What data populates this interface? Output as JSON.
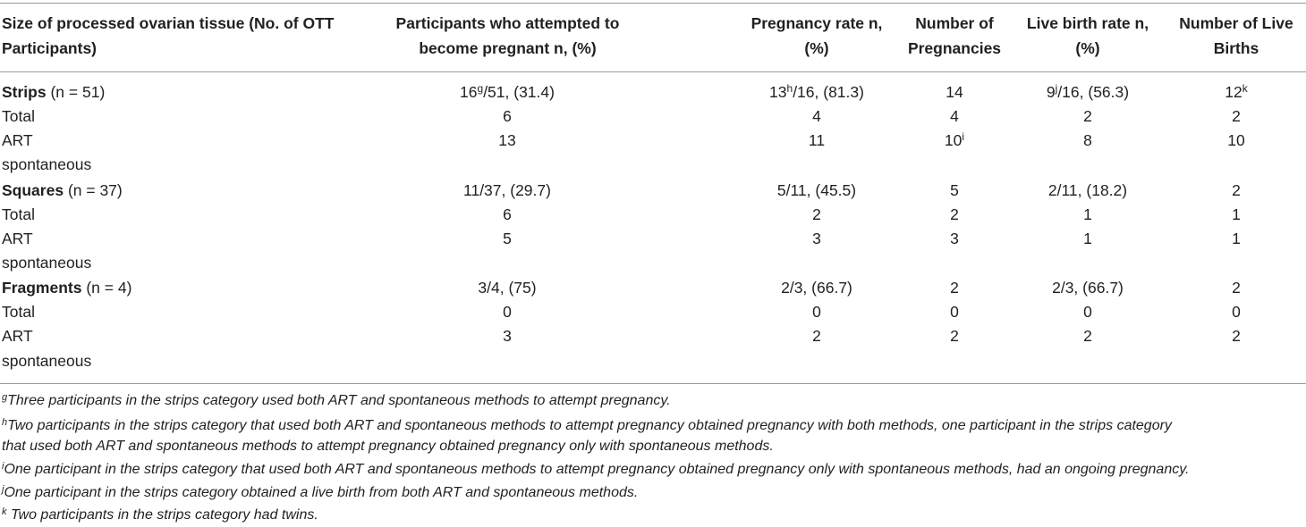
{
  "headers": [
    "Size of processed ovarian tissue (No. of OTT Participants)",
    "Participants who attempted to become pregnant n, (%)",
    "Pregnancy rate n, (%)",
    "Number of Pregnancies",
    "Live birth rate n, (%)",
    "Number of Live Births"
  ],
  "groups": [
    {
      "name": "Strips",
      "n": "(n = 51)",
      "attempted": {
        "value": "16",
        "sup": "g",
        "rest": "/51, (31.4)"
      },
      "preg_rate": {
        "value": "13",
        "sup": "h",
        "rest": "/16, (81.3)"
      },
      "num_preg": "14",
      "live_rate": {
        "value": "9",
        "sup": "j",
        "rest": "/16, (56.3)"
      },
      "num_live": {
        "value": "12",
        "sup": "k"
      },
      "rows": [
        {
          "label": "Total",
          "attempted": "6",
          "preg_rate": "4",
          "num_preg": "4",
          "live_rate": "2",
          "num_live": "2"
        },
        {
          "label": "ART",
          "attempted": "13",
          "preg_rate": "11",
          "num_preg": "10",
          "num_preg_sup": "i",
          "live_rate": "8",
          "num_live": "10"
        },
        {
          "label": "spontaneous"
        }
      ]
    },
    {
      "name": "Squares",
      "n": "(n = 37)",
      "attempted": "11/37, (29.7)",
      "preg_rate": "5/11, (45.5)",
      "num_preg": "5",
      "live_rate": "2/11, (18.2)",
      "num_live": "2",
      "rows": [
        {
          "label": "Total",
          "attempted": "6",
          "preg_rate": "2",
          "num_preg": "2",
          "live_rate": "1",
          "num_live": "1"
        },
        {
          "label": "ART",
          "attempted": "5",
          "preg_rate": "3",
          "num_preg": "3",
          "live_rate": "1",
          "num_live": "1"
        },
        {
          "label": "spontaneous"
        }
      ]
    },
    {
      "name": "Fragments",
      "n": "(n = 4)",
      "attempted": "3/4, (75)",
      "preg_rate": "2/3, (66.7)",
      "num_preg": "2",
      "live_rate": "2/3, (66.7)",
      "num_live": "2",
      "rows": [
        {
          "label": "Total",
          "attempted": "0",
          "preg_rate": "0",
          "num_preg": "0",
          "live_rate": "0",
          "num_live": "0"
        },
        {
          "label": "ART",
          "attempted": "3",
          "preg_rate": "2",
          "num_preg": "2",
          "live_rate": "2",
          "num_live": "2"
        },
        {
          "label": "spontaneous"
        }
      ]
    }
  ],
  "footnotes": [
    {
      "mark": "g",
      "text": "Three participants in the strips category used both ART and spontaneous methods to attempt pregnancy."
    },
    {
      "mark": "h",
      "text": "Two participants in the strips category that used both ART and spontaneous methods to attempt pregnancy obtained pregnancy with both methods, one participant in the strips category"
    },
    {
      "mark": "",
      "text": "that used both ART and spontaneous methods to attempt pregnancy obtained pregnancy only with spontaneous methods."
    },
    {
      "mark": "i",
      "text": "One participant in the strips category that used both ART and spontaneous methods to attempt pregnancy obtained pregnancy only with spontaneous methods, had an ongoing pregnancy."
    },
    {
      "mark": "j",
      "text": "One participant in the strips category obtained a live birth from both ART and spontaneous methods."
    },
    {
      "mark": "k",
      "text": " Two participants in the strips category had twins."
    }
  ]
}
